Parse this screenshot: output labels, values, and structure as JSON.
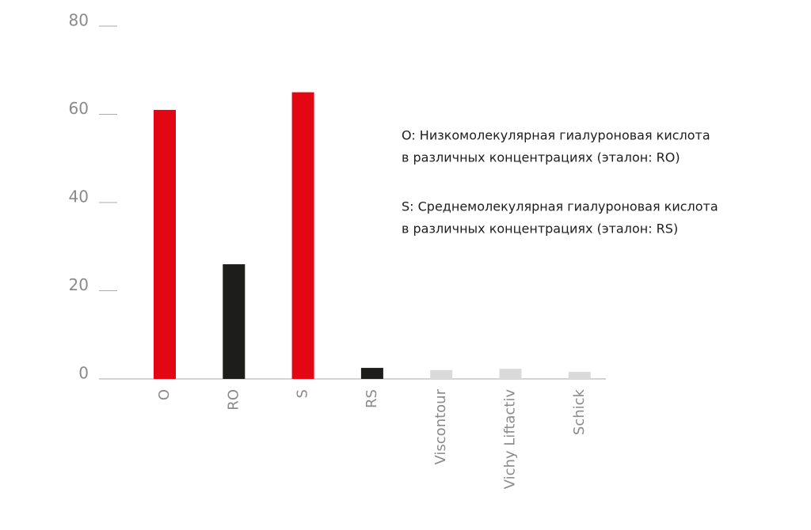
{
  "chart_data": {
    "type": "bar",
    "categories": [
      "O",
      "RO",
      "S",
      "RS",
      "Viscontour",
      "Vichy Liftactiv",
      "Schick"
    ],
    "values": [
      61,
      26,
      65,
      2.5,
      2,
      2.3,
      1.6
    ],
    "colors": [
      "#e30613",
      "#1d1d1b",
      "#e30613",
      "#1d1d1b",
      "#dadada",
      "#dadada",
      "#dadada"
    ],
    "ylim": [
      0,
      80
    ],
    "yticks": [
      0,
      20,
      40,
      60,
      80
    ],
    "annotations": [
      "O: Низкомолекулярная гиалуроновая кислота",
      "в различных концентрациях (эталон: RO)",
      "S: Среднемолекулярная гиалуроновая кислота",
      "в различных концентрациях (эталон: RS)"
    ]
  }
}
